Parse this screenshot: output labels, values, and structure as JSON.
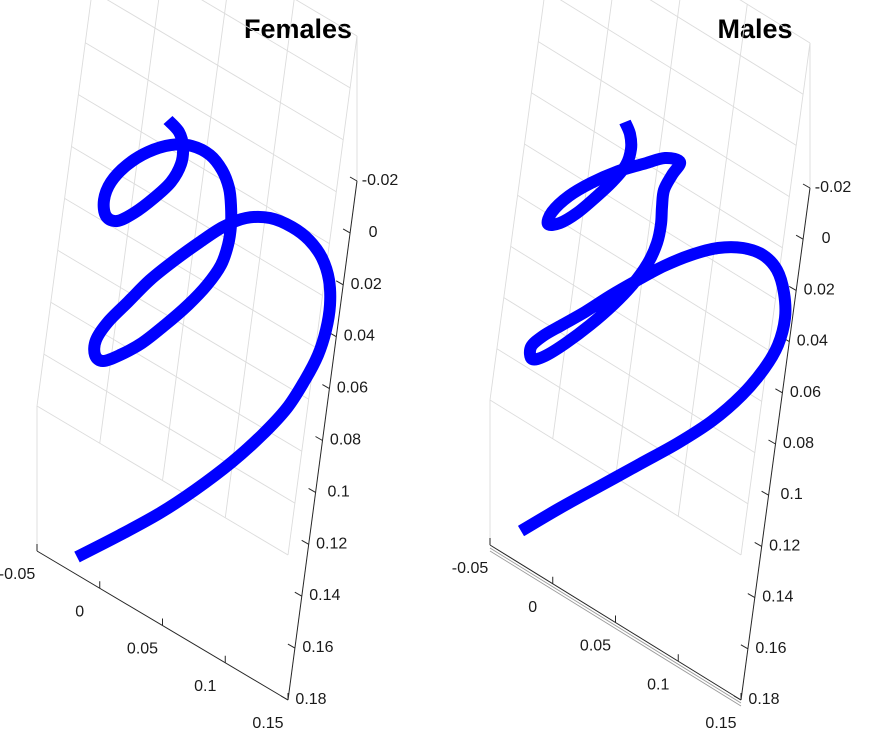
{
  "chart_data": [
    {
      "type": "line3d",
      "title": "Females",
      "color": "#0000ff",
      "x_ticks": [
        "-0.05",
        "0",
        "0.05",
        "0.1",
        "0.15"
      ],
      "y_ticks": [
        "-0.02",
        "0",
        "0.02",
        "0.04",
        "0.06",
        "0.08",
        "0.1",
        "0.12",
        "0.14",
        "0.16",
        "0.18"
      ],
      "x_range": [
        -0.05,
        0.15
      ],
      "y_range": [
        -0.02,
        0.18
      ],
      "grid": true,
      "curve_2d": [
        [
          77,
          557
        ],
        [
          120,
          535
        ],
        [
          160,
          513
        ],
        [
          195,
          490
        ],
        [
          232,
          462
        ],
        [
          262,
          435
        ],
        [
          287,
          408
        ],
        [
          305,
          380
        ],
        [
          318,
          355
        ],
        [
          326,
          330
        ],
        [
          330,
          305
        ],
        [
          329,
          280
        ],
        [
          322,
          258
        ],
        [
          309,
          240
        ],
        [
          292,
          227
        ],
        [
          270,
          218
        ],
        [
          246,
          218
        ],
        [
          223,
          227
        ],
        [
          200,
          242
        ],
        [
          175,
          260
        ],
        [
          150,
          280
        ],
        [
          128,
          302
        ],
        [
          108,
          322
        ],
        [
          96,
          340
        ],
        [
          95,
          355
        ],
        [
          103,
          361
        ],
        [
          120,
          355
        ],
        [
          142,
          343
        ],
        [
          165,
          325
        ],
        [
          188,
          305
        ],
        [
          207,
          285
        ],
        [
          221,
          265
        ],
        [
          228,
          245
        ],
        [
          231,
          225
        ],
        [
          231,
          206
        ],
        [
          229,
          188
        ],
        [
          222,
          170
        ],
        [
          210,
          155
        ],
        [
          192,
          146
        ],
        [
          171,
          145
        ],
        [
          148,
          152
        ],
        [
          127,
          165
        ],
        [
          111,
          182
        ],
        [
          104,
          200
        ],
        [
          106,
          216
        ],
        [
          117,
          221
        ],
        [
          134,
          213
        ],
        [
          154,
          198
        ],
        [
          171,
          182
        ],
        [
          181,
          164
        ],
        [
          183,
          147
        ],
        [
          179,
          132
        ],
        [
          168,
          120
        ]
      ]
    },
    {
      "type": "line3d",
      "title": "Males",
      "color": "#0000ff",
      "x_ticks": [
        "-0.05",
        "0",
        "0.05",
        "0.1",
        "0.15"
      ],
      "y_ticks": [
        "-0.02",
        "0",
        "0.02",
        "0.04",
        "0.06",
        "0.08",
        "0.1",
        "0.12",
        "0.14",
        "0.16",
        "0.18"
      ],
      "x_range": [
        -0.05,
        0.15
      ],
      "y_range": [
        -0.02,
        0.18
      ],
      "grid": true,
      "curve_2d": [
        [
          521,
          531
        ],
        [
          560,
          508
        ],
        [
          600,
          486
        ],
        [
          640,
          464
        ],
        [
          678,
          443
        ],
        [
          712,
          421
        ],
        [
          742,
          395
        ],
        [
          764,
          369
        ],
        [
          778,
          345
        ],
        [
          785,
          318
        ],
        [
          784,
          293
        ],
        [
          777,
          270
        ],
        [
          763,
          255
        ],
        [
          743,
          248
        ],
        [
          718,
          248
        ],
        [
          691,
          255
        ],
        [
          664,
          266
        ],
        [
          636,
          281
        ],
        [
          610,
          296
        ],
        [
          585,
          312
        ],
        [
          562,
          325
        ],
        [
          543,
          336
        ],
        [
          531,
          347
        ],
        [
          532,
          359
        ],
        [
          545,
          356
        ],
        [
          566,
          343
        ],
        [
          590,
          325
        ],
        [
          613,
          305
        ],
        [
          633,
          284
        ],
        [
          648,
          263
        ],
        [
          657,
          243
        ],
        [
          661,
          224
        ],
        [
          662,
          207
        ],
        [
          664,
          190
        ],
        [
          672,
          175
        ],
        [
          680,
          162
        ],
        [
          665,
          158
        ],
        [
          643,
          164
        ],
        [
          616,
          172
        ],
        [
          591,
          183
        ],
        [
          569,
          196
        ],
        [
          552,
          212
        ],
        [
          548,
          224
        ],
        [
          560,
          223
        ],
        [
          577,
          213
        ],
        [
          596,
          197
        ],
        [
          613,
          181
        ],
        [
          626,
          165
        ],
        [
          631,
          149
        ],
        [
          630,
          134
        ],
        [
          625,
          122
        ]
      ]
    }
  ]
}
